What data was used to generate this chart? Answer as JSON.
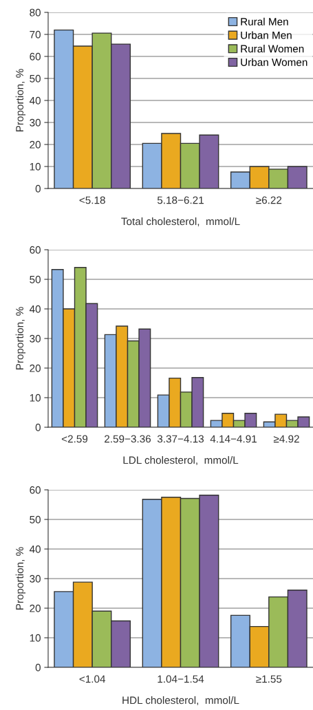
{
  "chart_data": [
    {
      "type": "bar",
      "xlabel": "Total cholesterol,  mmol/L",
      "ylabel": "Proportion, %",
      "categories": [
        "<5.18",
        "5.18−6.21",
        "≥6.22"
      ],
      "ylim": [
        0,
        80
      ],
      "yticks": [
        0,
        10,
        20,
        30,
        40,
        50,
        60,
        70,
        80
      ],
      "grid": "y",
      "legend": "top right",
      "series": [
        {
          "name": "Rural Men",
          "color": "#8db3e2",
          "values": [
            72,
            20.5,
            7.5
          ]
        },
        {
          "name": "Urban Men",
          "color": "#eaa920",
          "values": [
            64.7,
            25,
            10
          ]
        },
        {
          "name": "Rural Women",
          "color": "#9bbb59",
          "values": [
            70.6,
            20.5,
            8.8
          ]
        },
        {
          "name": "Urban Women",
          "color": "#8064a2",
          "values": [
            65.6,
            24.3,
            10
          ]
        }
      ]
    },
    {
      "type": "bar",
      "xlabel": "LDL cholesterol,  mmol/L",
      "ylabel": "Proportion, %",
      "categories": [
        "<2.59",
        "2.59−3.36",
        "3.37−4.13",
        "4.14−4.91",
        "≥4.92"
      ],
      "ylim": [
        0,
        60
      ],
      "yticks": [
        0,
        10,
        20,
        30,
        40,
        50,
        60
      ],
      "grid": "y",
      "series": [
        {
          "color": "#8db3e2",
          "values": [
            53.3,
            31.3,
            10.9,
            2.3,
            1.8
          ]
        },
        {
          "color": "#eaa920",
          "values": [
            40,
            34.2,
            16.6,
            4.7,
            4.4
          ]
        },
        {
          "color": "#9bbb59",
          "values": [
            54,
            29.2,
            11.9,
            2.3,
            2.3
          ]
        },
        {
          "color": "#8064a2",
          "values": [
            41.8,
            33.2,
            16.8,
            4.7,
            3.5
          ]
        }
      ]
    },
    {
      "type": "bar",
      "xlabel": "HDL cholesterol,  mmol/L",
      "ylabel": "Proportion, %",
      "categories": [
        "<1.04",
        "1.04−1.54",
        "≥1.55"
      ],
      "ylim": [
        0,
        60
      ],
      "yticks": [
        0,
        10,
        20,
        30,
        40,
        50,
        60
      ],
      "grid": "y",
      "series": [
        {
          "color": "#8db3e2",
          "values": [
            25.6,
            56.8,
            17.6
          ]
        },
        {
          "color": "#eaa920",
          "values": [
            28.8,
            57.5,
            13.8
          ]
        },
        {
          "color": "#9bbb59",
          "values": [
            19,
            57.1,
            23.8
          ]
        },
        {
          "color": "#8064a2",
          "values": [
            15.7,
            58.2,
            26.1
          ]
        }
      ]
    }
  ]
}
